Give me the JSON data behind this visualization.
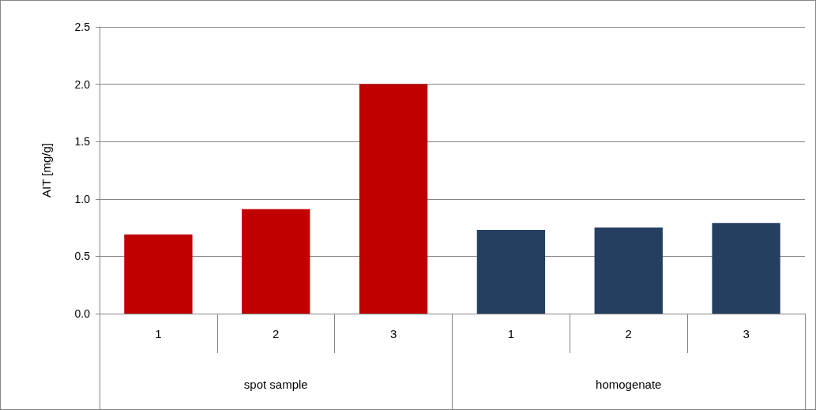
{
  "chart_data": {
    "type": "bar",
    "ylabel": "AIT [mg/g]",
    "categories": [
      "1",
      "2",
      "3",
      "1",
      "2",
      "3"
    ],
    "values": [
      0.69,
      0.91,
      2.0,
      0.73,
      0.75,
      0.79
    ],
    "colors": [
      "#c00000",
      "#c00000",
      "#c00000",
      "#243f60",
      "#243f60",
      "#243f60"
    ],
    "annotations": [
      "spot sample",
      "homogenate"
    ],
    "ylim": [
      0,
      2.5
    ],
    "yticks": [
      {
        "value": 0,
        "label": "0.0"
      },
      0.5,
      {
        "value": 1,
        "label": "1.0"
      },
      1.5,
      {
        "value": 2,
        "label": "2.0"
      },
      2.5
    ],
    "grid": "y"
  }
}
